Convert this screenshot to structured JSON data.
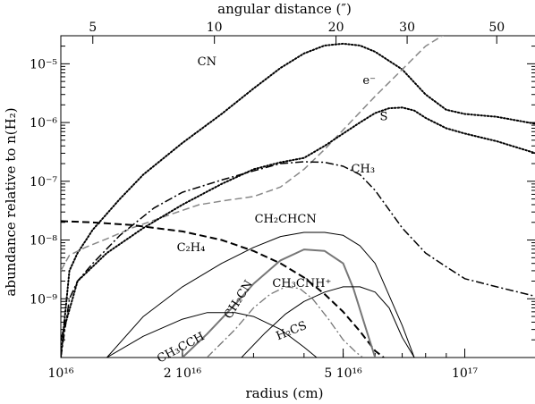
{
  "chart_data": {
    "type": "line",
    "xlabel_bottom": "radius (cm)",
    "xlabel_top": "angular distance (″)",
    "ylabel": "abundance relative to n(H₂)",
    "x_scale": "log",
    "y_scale": "log",
    "xlim_cm": [
      1e+16,
      1.5e+17
    ],
    "ylim": [
      1e-10,
      3e-05
    ],
    "grid": false,
    "legend": "none",
    "bottom_ticks": [
      {
        "value": 1e+16,
        "label": "10¹⁶"
      },
      {
        "value": 2e+16,
        "label": "2 10¹⁶"
      },
      {
        "value": 5e+16,
        "label": "5 10¹⁶"
      },
      {
        "value": 1e+17,
        "label": "10¹⁷"
      }
    ],
    "top_ticks": [
      {
        "value_cm": 1.2e+16,
        "label": "5"
      },
      {
        "value_cm": 2.4e+16,
        "label": "10"
      },
      {
        "value_cm": 4.8e+16,
        "label": "20"
      },
      {
        "value_cm": 7.2e+16,
        "label": "30"
      },
      {
        "value_cm": 1.2e+17,
        "label": "50"
      }
    ],
    "y_ticks": [
      {
        "value": 1e-09,
        "label": "10⁻⁹"
      },
      {
        "value": 1e-08,
        "label": "10⁻⁸"
      },
      {
        "value": 1e-07,
        "label": "10⁻⁷"
      },
      {
        "value": 1e-06,
        "label": "10⁻⁶"
      },
      {
        "value": 1e-05,
        "label": "10⁻⁵"
      }
    ],
    "series": [
      {
        "name": "CN",
        "label_at": [
          2.3e+16,
          9.5e-06
        ],
        "color": "#000000",
        "style": "dotted",
        "width": 2,
        "x": [
          1e+16,
          1.05e+16,
          1.1e+16,
          1.2e+16,
          1.4e+16,
          1.6e+16,
          2e+16,
          2.5e+16,
          3e+16,
          3.5e+16,
          4e+16,
          4.5e+16,
          5e+16,
          5.5e+16,
          6e+16,
          7e+16,
          8e+16,
          9e+16,
          1e+17,
          1.2e+17,
          1.5e+17
        ],
        "y": [
          1e-10,
          3e-09,
          6e-09,
          1.5e-08,
          5e-08,
          1.3e-07,
          4.5e-07,
          1.4e-06,
          3.8e-06,
          8.5e-06,
          1.5e-05,
          2.05e-05,
          2.2e-05,
          2.05e-05,
          1.6e-05,
          8e-06,
          3e-06,
          1.65e-06,
          1.4e-06,
          1.25e-06,
          9.5e-07
        ]
      },
      {
        "name": "e⁻",
        "label_at": [
          5.8e+16,
          4.5e-06
        ],
        "color": "#888888",
        "style": "dashed",
        "width": 1.5,
        "x": [
          1e+16,
          1.05e+16,
          1.15e+16,
          1.3e+16,
          1.5e+16,
          1.8e+16,
          2.2e+16,
          2.6e+16,
          3e+16,
          3.5e+16,
          4e+16,
          4.5e+16,
          5e+16,
          6e+16,
          7e+16,
          8e+16,
          9e+16
        ],
        "y": [
          3e-09,
          5.5e-09,
          7.5e-09,
          1.05e-08,
          1.6e-08,
          2.5e-08,
          4e-08,
          4.8e-08,
          5.5e-08,
          8e-08,
          1.6e-07,
          3.5e-07,
          7.5e-07,
          2.8e-06,
          8e-06,
          2e-05,
          3.3e-05
        ]
      },
      {
        "name": "S",
        "label_at": [
          6.3e+16,
          1.1e-06
        ],
        "color": "#000000",
        "style": "dotted",
        "width": 2,
        "x": [
          1e+16,
          1.1e+16,
          1.3e+16,
          1.6e+16,
          2e+16,
          2.5e+16,
          3e+16,
          3.5e+16,
          4e+16,
          4.5e+16,
          5e+16,
          5.5e+16,
          6e+16,
          6.5e+16,
          7e+16,
          7.5e+16,
          8e+16,
          9e+16,
          1e+17,
          1.2e+17,
          1.5e+17
        ],
        "y": [
          2e-10,
          2e-09,
          6e-09,
          1.6e-08,
          4e-08,
          9e-08,
          1.6e-07,
          2.1e-07,
          2.5e-07,
          4e-07,
          6.5e-07,
          1e-06,
          1.45e-06,
          1.75e-06,
          1.8e-06,
          1.6e-06,
          1.2e-06,
          8e-07,
          6.5e-07,
          4.8e-07,
          3e-07
        ]
      },
      {
        "name": "CH₃",
        "label_at": [
          5.6e+16,
          1.4e-07
        ],
        "color": "#000000",
        "style": "dashdot",
        "width": 1.5,
        "x": [
          1e+16,
          1.05e+16,
          1.1e+16,
          1.2e+16,
          1.4e+16,
          1.7e+16,
          2e+16,
          2.5e+16,
          3e+16,
          3.5e+16,
          4e+16,
          4.5e+16,
          5e+16,
          5.5e+16,
          6e+16,
          7e+16,
          8e+16,
          9e+16,
          1e+17,
          1.2e+17,
          1.5e+17
        ],
        "y": [
          1e-10,
          1e-09,
          2e-09,
          4e-09,
          1.2e-08,
          3.5e-08,
          6.5e-08,
          1.05e-07,
          1.5e-07,
          2e-07,
          2.15e-07,
          2.1e-07,
          1.8e-07,
          1.3e-07,
          7e-08,
          1.6e-08,
          6e-09,
          3.5e-09,
          2.2e-09,
          1.6e-09,
          1.1e-09
        ]
      },
      {
        "name": "C₂H₄",
        "label_at": [
          2.1e+16,
          6.5e-09
        ],
        "color": "#000000",
        "style": "dashed",
        "width": 2,
        "x": [
          1e+16,
          1.2e+16,
          1.5e+16,
          2e+16,
          2.5e+16,
          3e+16,
          3.5e+16,
          4e+16,
          4.5e+16,
          5e+16,
          5.5e+16,
          6e+16,
          6.3e+16
        ],
        "y": [
          2.1e-08,
          2e-08,
          1.8e-08,
          1.4e-08,
          1e-08,
          6.5e-09,
          4e-09,
          2.3e-09,
          1.2e-09,
          6e-10,
          2.8e-10,
          1.3e-10,
          1e-10
        ]
      },
      {
        "name": "CH₂CHCN",
        "label_at": [
          3.6e+16,
          2e-08
        ],
        "color": "#000000",
        "style": "solid",
        "width": 1,
        "x": [
          1.3e+16,
          1.6e+16,
          2e+16,
          2.5e+16,
          3e+16,
          3.5e+16,
          4e+16,
          4.5e+16,
          5e+16,
          5.5e+16,
          6e+16,
          7e+16,
          7.5e+16
        ],
        "y": [
          1e-10,
          5e-10,
          1.6e-09,
          4e-09,
          7.5e-09,
          1.15e-08,
          1.35e-08,
          1.35e-08,
          1.2e-08,
          8e-09,
          4e-09,
          3.5e-10,
          1e-10
        ]
      },
      {
        "name": "CH₂CN",
        "label_at": [
          2.8e+16,
          9e-10
        ],
        "rotate": -58,
        "color": "#777777",
        "style": "solid",
        "width": 2,
        "x": [
          2e+16,
          2.3e+16,
          2.7e+16,
          3e+16,
          3.5e+16,
          4e+16,
          4.5e+16,
          5e+16,
          5.3e+16,
          5.7e+16,
          6e+16
        ],
        "y": [
          1e-10,
          2.5e-10,
          8e-10,
          1.8e-09,
          4.5e-09,
          6.9e-09,
          6.5e-09,
          4e-09,
          1.5e-09,
          3e-10,
          1e-10
        ]
      },
      {
        "name": "CH₃CNH⁺",
        "label_at": [
          3.95e+16,
          1.6e-09
        ],
        "color": "#777777",
        "style": "dashdot",
        "width": 1.3,
        "x": [
          2.3e+16,
          2.7e+16,
          3e+16,
          3.3e+16,
          3.6e+16,
          3.9e+16,
          4.2e+16,
          4.6e+16,
          5e+16,
          5.4e+16,
          5.6e+16
        ],
        "y": [
          1e-10,
          3e-10,
          7e-10,
          1.2e-09,
          1.6e-09,
          1.5e-09,
          1e-09,
          4.5e-10,
          2e-10,
          1.2e-10,
          1e-10
        ]
      },
      {
        "name": "H₂CS",
        "label_at": [
          3.75e+16,
          2.5e-10
        ],
        "rotate": -22,
        "color": "#000000",
        "style": "solid",
        "width": 1,
        "x": [
          2.8e+16,
          3.2e+16,
          3.6e+16,
          4e+16,
          4.5e+16,
          5e+16,
          5.5e+16,
          6e+16,
          6.5e+16,
          7e+16,
          7.5e+16
        ],
        "y": [
          1e-10,
          2.6e-10,
          5.5e-10,
          9e-10,
          1.3e-09,
          1.6e-09,
          1.6e-09,
          1.3e-09,
          7e-10,
          2.2e-10,
          1e-10
        ]
      },
      {
        "name": "CH₃CCH",
        "label_at": [
          2e+16,
          1.3e-10
        ],
        "rotate": -28,
        "color": "#000000",
        "style": "solid",
        "width": 1,
        "x": [
          1.3e+16,
          1.6e+16,
          2e+16,
          2.3e+16,
          2.7e+16,
          3e+16,
          3.5e+16,
          4e+16,
          4.3e+16
        ],
        "y": [
          1e-10,
          2.3e-10,
          4.5e-10,
          5.8e-10,
          5.8e-10,
          5e-10,
          3e-10,
          1.5e-10,
          1e-10
        ]
      }
    ]
  }
}
